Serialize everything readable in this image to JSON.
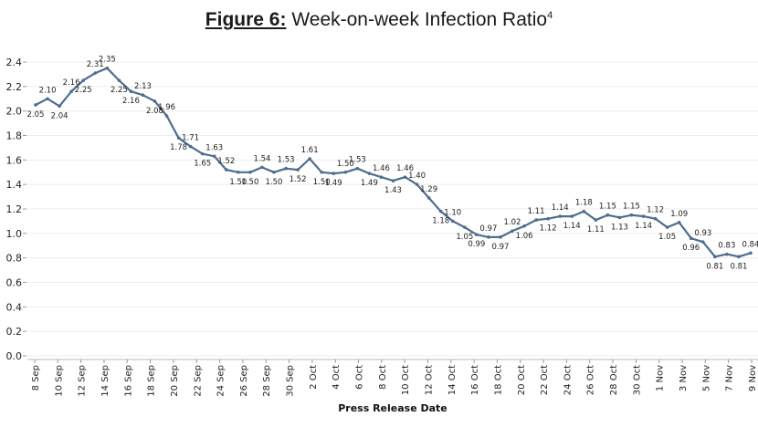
{
  "title": {
    "prefix": "Figure 6:",
    "text": " Week-on-week Infection Ratio",
    "superscript": "4"
  },
  "chart_data": {
    "type": "line",
    "title": "Figure 6: Week-on-week Infection Ratio",
    "xlabel": "Press Release Date",
    "ylabel": "",
    "ylim": [
      0.0,
      2.5
    ],
    "yticks": [
      "0.0",
      "0.2",
      "0.4",
      "0.6",
      "0.8",
      "1.0",
      "1.2",
      "1.4",
      "1.6",
      "1.8",
      "2.0",
      "2.2",
      "2.4"
    ],
    "grid": true,
    "line_color": "#4f6d8f",
    "xtick_labels": [
      "8 Sep",
      "10 Sep",
      "12 Sep",
      "14 Sep",
      "16 Sep",
      "18 Sep",
      "20 Sep",
      "22 Sep",
      "24 Sep",
      "26 Sep",
      "28 Sep",
      "30 Sep",
      "2 Oct",
      "4 Oct",
      "6 Oct",
      "8 Oct",
      "10 Oct",
      "12 Oct",
      "14 Oct",
      "16 Oct",
      "18 Oct",
      "20 Oct",
      "22 Oct",
      "24 Oct",
      "26 Oct",
      "28 Oct",
      "30 Oct",
      "1 Nov",
      "3 Nov",
      "5 Nov",
      "7 Nov",
      "9 Nov"
    ],
    "series": [
      {
        "name": "Week-on-week Infection Ratio",
        "values": [
          2.05,
          2.1,
          2.04,
          2.16,
          2.25,
          2.31,
          2.35,
          2.25,
          2.16,
          2.13,
          2.08,
          1.96,
          1.78,
          1.71,
          1.65,
          1.63,
          1.52,
          1.5,
          1.5,
          1.54,
          1.5,
          1.53,
          1.52,
          1.61,
          1.5,
          1.49,
          1.5,
          1.53,
          1.49,
          1.46,
          1.43,
          1.46,
          1.4,
          1.29,
          1.18,
          1.1,
          1.05,
          0.99,
          0.97,
          0.97,
          1.02,
          1.06,
          1.11,
          1.12,
          1.14,
          1.14,
          1.18,
          1.11,
          1.15,
          1.13,
          1.15,
          1.14,
          1.12,
          1.05,
          1.09,
          0.96,
          0.93,
          0.81,
          0.83,
          0.81,
          0.84
        ]
      }
    ],
    "label_positions": [
      "below",
      "above",
      "below",
      "above",
      "below",
      "above",
      "above",
      "below",
      "below",
      "above",
      "below",
      "above",
      "below",
      "above",
      "below",
      "above",
      "above",
      "below",
      "below",
      "above",
      "below",
      "above",
      "below",
      "above",
      "below",
      "below",
      "above",
      "above",
      "below",
      "above",
      "below",
      "above",
      "above",
      "above",
      "below",
      "above",
      "below",
      "below",
      "above",
      "below",
      "above",
      "below",
      "above",
      "below",
      "above",
      "below",
      "above",
      "below",
      "above",
      "below",
      "above",
      "below",
      "above",
      "below",
      "above",
      "below",
      "above",
      "below",
      "above",
      "below",
      "above"
    ]
  }
}
